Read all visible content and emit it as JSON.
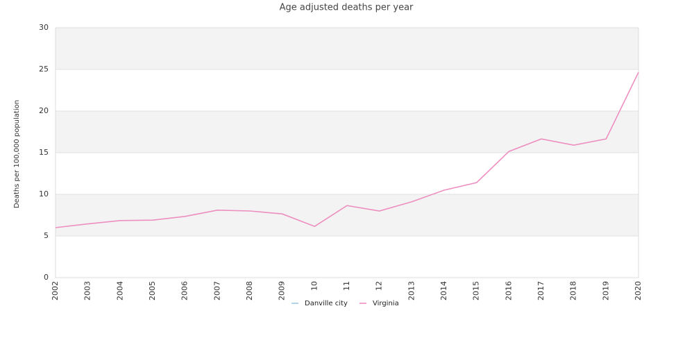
{
  "chart_data": {
    "type": "line",
    "title": "Age adjusted deaths per year",
    "y_label": "Deaths per 100,000 population",
    "categories": [
      "2002",
      "2003",
      "2004",
      "2005",
      "2006",
      "2007",
      "2008",
      "2009",
      "10",
      "11",
      "12",
      "2013",
      "2014",
      "2015",
      "2016",
      "2017",
      "2018",
      "2019",
      "2020"
    ],
    "series": [
      {
        "name": "Danville city",
        "color": "#9ecae1",
        "values": [
          null,
          null,
          null,
          null,
          null,
          null,
          null,
          null,
          null,
          null,
          null,
          null,
          null,
          null,
          null,
          null,
          null,
          null,
          null
        ]
      },
      {
        "name": "Virginia",
        "color": "#ee8ec0",
        "values": [
          6.0,
          6.45,
          6.85,
          6.9,
          7.35,
          8.1,
          8.0,
          7.65,
          6.15,
          8.65,
          8.0,
          9.1,
          10.5,
          11.4,
          15.15,
          16.65,
          15.9,
          16.65,
          24.65
        ]
      }
    ],
    "ylim": [
      0,
      30
    ],
    "yticks": [
      0,
      5,
      10,
      15,
      20,
      25,
      30
    ],
    "grid": true
  }
}
